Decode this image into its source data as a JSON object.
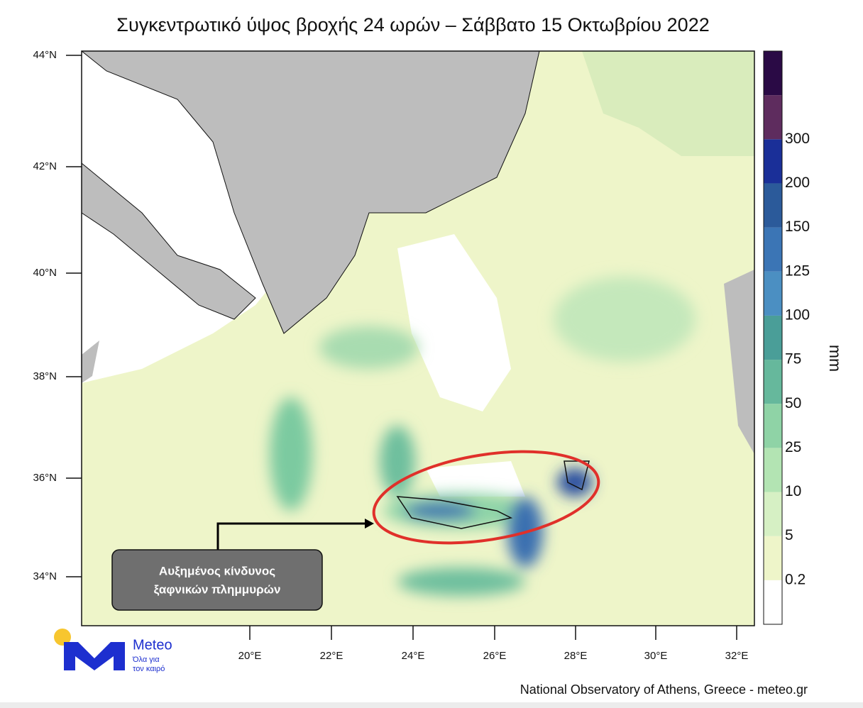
{
  "header": {
    "title": "Συγκεντρωτικό ύψος βροχής 24 ωρών – Σάββατο 15 Οκτωβρίου 2022"
  },
  "map": {
    "lat_labels": [
      "44°N",
      "42°N",
      "40°N",
      "38°N",
      "36°N",
      "34°N"
    ],
    "lon_labels": [
      "20°E",
      "22°E",
      "24°E",
      "26°E",
      "28°E",
      "30°E",
      "32°E"
    ],
    "annotation": [
      "Αυξημένος κίνδυνος",
      "ξαφνικών πλημμυρών"
    ]
  },
  "colorbar": {
    "unit": "mm",
    "labels": [
      0.2,
      5,
      10,
      25,
      50,
      75,
      100,
      125,
      150,
      200,
      300
    ]
  },
  "logo": {
    "name": "Meteo",
    "tagline": [
      "Όλα για",
      "τον καιρό"
    ]
  },
  "footer": {
    "credit": "National Observatory of Athens, Greece - meteo.gr"
  }
}
